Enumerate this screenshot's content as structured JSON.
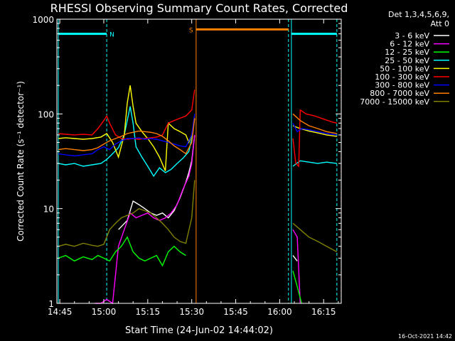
{
  "chart_data": {
    "type": "line",
    "title": "RHESSI Observing Summary Count Rates, Corrected",
    "xlabel": "Start Time (24-Jun-02 14:44:02)",
    "ylabel": "Corrected Count Rate (s⁻¹ detector⁻¹)",
    "yscale": "log",
    "ylim": [
      1,
      1000
    ],
    "xlim_min": [
      44.0,
      141.0
    ],
    "x_unit": "minutes after 14:00 UT",
    "x_ticks": [
      {
        "v": 45,
        "label": "14:45"
      },
      {
        "v": 60,
        "label": "15:00"
      },
      {
        "v": 75,
        "label": "15:15"
      },
      {
        "v": 90,
        "label": "15:30"
      },
      {
        "v": 105,
        "label": "15:45"
      },
      {
        "v": 120,
        "label": "16:00"
      },
      {
        "v": 135,
        "label": "16:15"
      }
    ],
    "y_ticks": [
      {
        "v": 1,
        "label": "1"
      },
      {
        "v": 10,
        "label": "10"
      },
      {
        "v": 100,
        "label": "100"
      },
      {
        "v": 1000,
        "label": "1000"
      }
    ],
    "legend_header": [
      "Det 1,3,4,5,6,9,",
      "Att 0"
    ],
    "timestamp": "16-Oct-2021 14:42",
    "markers": [
      {
        "label": "N",
        "start": 44.5,
        "end": 61.0,
        "color": "#00ffff",
        "level": 700
      },
      {
        "label": "S",
        "start": 91.5,
        "end": 123.0,
        "color": "#ff8000",
        "level": 780
      },
      {
        "label": "",
        "start": 124.0,
        "end": 139.5,
        "color": "#00ffff",
        "level": 700
      }
    ],
    "vlines": [
      {
        "x": 44.5,
        "color": "#00ffff",
        "style": "solid"
      },
      {
        "x": 61.0,
        "color": "#00ffff",
        "style": "dashed"
      },
      {
        "x": 91.5,
        "color": "#ff8000",
        "style": "solid"
      },
      {
        "x": 123.0,
        "color": "#00ffff",
        "style": "dashed"
      },
      {
        "x": 124.0,
        "color": "#00ffff",
        "style": "solid"
      },
      {
        "x": 139.5,
        "color": "#00ffff",
        "style": "dashed"
      }
    ],
    "series": [
      {
        "name": "3 - 6 keV",
        "color": "#ffffff",
        "segments": [
          {
            "x": [
              65,
              68,
              70,
              72,
              74,
              76,
              78,
              80,
              82,
              84,
              86,
              88,
              89,
              90,
              91
            ],
            "y": [
              6,
              7.5,
              12,
              11,
              10,
              9,
              8.5,
              9,
              8,
              9.5,
              13,
              19,
              24,
              32,
              60
            ]
          },
          {
            "x": [
              124.5,
              126
            ],
            "y": [
              3.2,
              2.8
            ]
          }
        ]
      },
      {
        "name": "6 - 12 keV",
        "color": "#ff00ff",
        "segments": [
          {
            "x": [
              57,
              59,
              61,
              63,
              65,
              67,
              69,
              71,
              73,
              75,
              77,
              79,
              81,
              83,
              85,
              87,
              89,
              90,
              91
            ],
            "y": [
              1,
              1,
              1.1,
              1,
              4,
              6,
              9,
              8,
              8.5,
              9,
              8,
              7.5,
              8,
              9,
              11,
              16,
              22,
              30,
              60
            ]
          },
          {
            "x": [
              124.5,
              126,
              127
            ],
            "y": [
              6,
              5,
              1
            ]
          }
        ]
      },
      {
        "name": "12 - 25 keV",
        "color": "#00ff00",
        "segments": [
          {
            "x": [
              44.5,
              47,
              50,
              53,
              56,
              58,
              60,
              62,
              64,
              66,
              68,
              70,
              72,
              74,
              76,
              78,
              80,
              82,
              84,
              86,
              88
            ],
            "y": [
              3,
              3.2,
              2.8,
              3.1,
              2.9,
              3.2,
              3,
              2.8,
              3.5,
              4,
              5,
              3.5,
              3,
              2.8,
              3,
              3.2,
              2.5,
              3.5,
              4,
              3.5,
              3.2
            ]
          },
          {
            "x": [
              124.5,
              126,
              127.5
            ],
            "y": [
              2.2,
              1.5,
              1
            ]
          }
        ]
      },
      {
        "name": "25 - 50 keV",
        "color": "#00ffff",
        "segments": [
          {
            "x": [
              44.5,
              47,
              50,
              53,
              56,
              59,
              61,
              63,
              65,
              67,
              69,
              70,
              71,
              73,
              75,
              77,
              79,
              81,
              83,
              85,
              87,
              89,
              90,
              91
            ],
            "y": [
              30,
              29,
              30,
              28,
              29,
              30,
              33,
              38,
              44,
              60,
              120,
              80,
              45,
              35,
              28,
              22,
              27,
              24,
              26,
              30,
              34,
              40,
              55,
              90
            ]
          },
          {
            "x": [
              124.5,
              127,
              130,
              133,
              136,
              139.5
            ],
            "y": [
              28,
              32,
              31,
              30,
              31,
              30
            ]
          }
        ]
      },
      {
        "name": "50 - 100 keV",
        "color": "#ffff00",
        "segments": [
          {
            "x": [
              44.5,
              47,
              50,
              53,
              56,
              59,
              61,
              63,
              65,
              67,
              68,
              69,
              70,
              71,
              73,
              75,
              77,
              79,
              81,
              82,
              84,
              86,
              88,
              89,
              90,
              91
            ],
            "y": [
              55,
              56,
              55,
              54,
              55,
              57,
              62,
              50,
              35,
              60,
              130,
              200,
              120,
              80,
              65,
              55,
              45,
              35,
              25,
              80,
              70,
              65,
              60,
              50,
              60,
              90
            ]
          },
          {
            "x": [
              124.5,
              127,
              130,
              133,
              136,
              139.5
            ],
            "y": [
              75,
              70,
              66,
              63,
              60,
              58
            ]
          }
        ]
      },
      {
        "name": "100 - 300 keV",
        "color": "#ff0000",
        "segments": [
          {
            "x": [
              44.5,
              47,
              50,
              53,
              56,
              58,
              60,
              61,
              62,
              64,
              66,
              68,
              70,
              72,
              74,
              76,
              78,
              80,
              82,
              84,
              86,
              88,
              90,
              91
            ],
            "y": [
              62,
              61,
              60,
              61,
              60,
              70,
              85,
              95,
              80,
              60,
              55,
              54,
              55,
              54,
              55,
              56,
              57,
              60,
              80,
              85,
              90,
              95,
              110,
              180
            ]
          },
          {
            "x": [
              124.5,
              125.5,
              126.5,
              127,
              129,
              132,
              135,
              138,
              139.5
            ],
            "y": [
              55,
              30,
              28,
              110,
              100,
              95,
              88,
              82,
              80
            ]
          }
        ]
      },
      {
        "name": "300 - 800 keV",
        "color": "#0000ff",
        "segments": [
          {
            "x": [
              44.5,
              47,
              50,
              53,
              56,
              58,
              60,
              62,
              64,
              66,
              68,
              70,
              72,
              74,
              76,
              78,
              80,
              82,
              84,
              86,
              88,
              90,
              91
            ],
            "y": [
              38,
              37,
              36,
              37,
              38,
              42,
              45,
              42,
              48,
              52,
              55,
              55,
              56,
              54,
              55,
              54,
              52,
              50,
              48,
              46,
              45,
              60,
              100
            ]
          },
          {
            "x": [
              124.5,
              126,
              127.5,
              130,
              133,
              136,
              139.5
            ],
            "y": [
              80,
              65,
              70,
              68,
              65,
              62,
              60
            ]
          }
        ]
      },
      {
        "name": "800 - 7000 keV",
        "color": "#ff8000",
        "segments": [
          {
            "x": [
              44.5,
              47,
              50,
              53,
              56,
              58,
              60,
              62,
              64,
              66,
              68,
              70,
              72,
              74,
              76,
              78,
              80,
              82,
              84,
              86,
              88,
              90,
              91
            ],
            "y": [
              42,
              43,
              42,
              41,
              42,
              44,
              48,
              52,
              55,
              58,
              62,
              64,
              66,
              65,
              64,
              62,
              58,
              52,
              46,
              42,
              38,
              50,
              90
            ]
          },
          {
            "x": [
              124.5,
              127,
              130,
              133,
              136,
              139.5
            ],
            "y": [
              100,
              85,
              75,
              70,
              65,
              62
            ]
          }
        ]
      },
      {
        "name": "7000 - 15000 keV",
        "color": "#808000",
        "segments": [
          {
            "x": [
              44.5,
              47,
              50,
              53,
              56,
              58,
              60,
              62,
              64,
              66,
              68,
              70,
              72,
              74,
              76,
              78,
              80,
              82,
              84,
              86,
              88,
              90,
              91
            ],
            "y": [
              4,
              4.2,
              4,
              4.3,
              4.1,
              4,
              4.2,
              6,
              7,
              8,
              8.5,
              9,
              10,
              9.5,
              9,
              8,
              7,
              6,
              5,
              4.5,
              4.3,
              8,
              20
            ]
          },
          {
            "x": [
              124.5,
              127,
              130,
              133,
              136,
              139.5
            ],
            "y": [
              7,
              6,
              5,
              4.5,
              4,
              3.5
            ]
          }
        ]
      }
    ]
  }
}
